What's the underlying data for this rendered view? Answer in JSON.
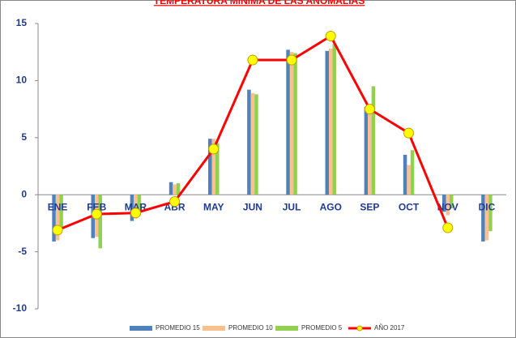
{
  "chart_data": {
    "type": "bar_line",
    "title": "TEMPERATURA MINIMA DE LAS ANOMALIAS",
    "categories": [
      "ENE",
      "FEB",
      "MAR",
      "ABR",
      "MAY",
      "JUN",
      "JUL",
      "AGO",
      "SEP",
      "OCT",
      "NOV",
      "DIC"
    ],
    "series": [
      {
        "name": "PROMEDIO 15",
        "color": "#4f81bd",
        "kind": "bar",
        "values": [
          -4.1,
          -3.8,
          -2.3,
          1.1,
          4.9,
          9.2,
          12.7,
          12.6,
          7.7,
          3.5,
          -1.5,
          -4.1
        ]
      },
      {
        "name": "PROMEDIO 10",
        "color": "#fac090",
        "kind": "bar",
        "values": [
          -4.0,
          -3.7,
          -2.1,
          0.9,
          4.9,
          8.9,
          12.5,
          12.8,
          7.5,
          2.6,
          -1.8,
          -4.0
        ]
      },
      {
        "name": "PROMEDIO 5",
        "color": "#92d050",
        "kind": "bar",
        "values": [
          -2.9,
          -4.7,
          -1.8,
          1.0,
          4.5,
          8.8,
          12.4,
          13.2,
          9.5,
          3.9,
          -1.2,
          -3.2
        ]
      },
      {
        "name": "AÑO 2017",
        "color": "#ff0000",
        "kind": "line",
        "values": [
          -3.1,
          -1.7,
          -1.6,
          -0.6,
          4.0,
          11.8,
          11.8,
          13.9,
          7.5,
          5.4,
          -2.9,
          null
        ]
      }
    ],
    "ylim": [
      -10,
      15
    ],
    "yticks": [
      -10,
      -5,
      0,
      5,
      10,
      15
    ]
  }
}
